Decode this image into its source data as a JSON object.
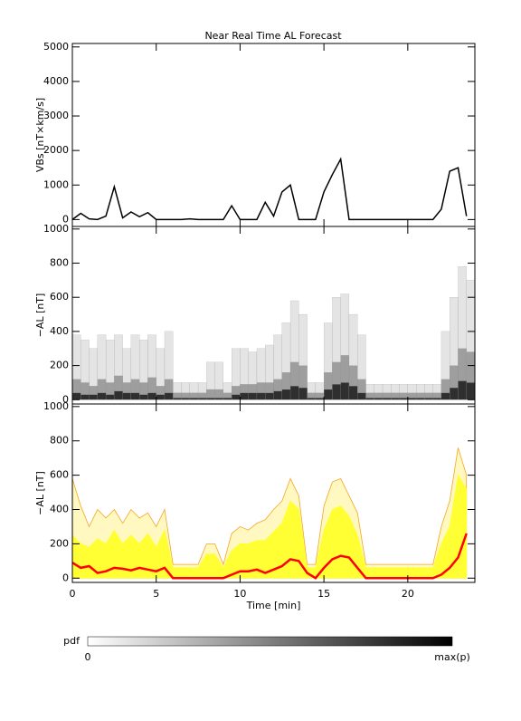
{
  "chart_data": [
    {
      "type": "line",
      "title": "Near Real Time AL Forecast",
      "ylabel": "VBs [nT×km/s]",
      "x": [
        0,
        0.5,
        1,
        1.5,
        2,
        2.5,
        3,
        3.5,
        4,
        4.5,
        5,
        5.5,
        6,
        6.5,
        7,
        7.5,
        8,
        8.5,
        9,
        9.5,
        10,
        10.5,
        11,
        11.5,
        12,
        12.5,
        13,
        13.5,
        14,
        14.5,
        15,
        15.5,
        16,
        16.5,
        17,
        17.5,
        18,
        18.5,
        19,
        19.5,
        20,
        20.5,
        21,
        21.5,
        22,
        22.5,
        23,
        23.5
      ],
      "series": [
        {
          "color": "#000000",
          "values": [
            0,
            180,
            20,
            0,
            100,
            950,
            50,
            220,
            80,
            200,
            0,
            0,
            0,
            0,
            20,
            0,
            0,
            0,
            0,
            400,
            0,
            0,
            0,
            500,
            100,
            800,
            1000,
            0,
            0,
            0,
            800,
            1300,
            1750,
            0,
            0,
            0,
            0,
            0,
            0,
            0,
            0,
            0,
            0,
            0,
            300,
            1400,
            1500,
            100
          ]
        }
      ],
      "xlim": [
        0,
        24
      ],
      "ylim": [
        -200,
        5100
      ],
      "yticks": [
        0,
        1000,
        2000,
        3000,
        4000,
        5000
      ]
    },
    {
      "type": "heatmap",
      "ylabel": "−AL [nT]",
      "x": [
        0,
        0.5,
        1,
        1.5,
        2,
        2.5,
        3,
        3.5,
        4,
        4.5,
        5,
        5.5,
        6,
        6.5,
        7,
        7.5,
        8,
        8.5,
        9,
        9.5,
        10,
        10.5,
        11,
        11.5,
        12,
        12.5,
        13,
        13.5,
        14,
        14.5,
        15,
        15.5,
        16,
        16.5,
        17,
        17.5,
        18,
        18.5,
        19,
        19.5,
        20,
        20.5,
        21,
        21.5,
        22,
        22.5,
        23,
        23.5
      ],
      "series": [
        {
          "color": "#d8d8d8",
          "values": [
            380,
            350,
            300,
            380,
            350,
            380,
            300,
            380,
            350,
            380,
            300,
            400,
            100,
            100,
            100,
            100,
            220,
            220,
            100,
            300,
            300,
            280,
            300,
            320,
            380,
            450,
            580,
            500,
            100,
            100,
            450,
            600,
            620,
            500,
            380,
            90,
            90,
            90,
            90,
            90,
            90,
            90,
            90,
            90,
            400,
            600,
            780,
            700
          ]
        },
        {
          "color": "#808080",
          "values": [
            120,
            100,
            80,
            120,
            100,
            140,
            100,
            120,
            100,
            130,
            80,
            120,
            40,
            40,
            40,
            40,
            60,
            60,
            40,
            80,
            90,
            90,
            100,
            100,
            120,
            160,
            220,
            200,
            40,
            40,
            160,
            220,
            260,
            200,
            120,
            40,
            40,
            40,
            40,
            40,
            40,
            40,
            40,
            40,
            120,
            200,
            300,
            280
          ]
        },
        {
          "color": "#000000",
          "values": [
            40,
            30,
            30,
            40,
            30,
            50,
            40,
            40,
            30,
            40,
            30,
            40,
            10,
            10,
            10,
            10,
            10,
            10,
            10,
            30,
            40,
            40,
            40,
            40,
            50,
            60,
            80,
            70,
            10,
            10,
            60,
            90,
            100,
            80,
            40,
            10,
            10,
            10,
            10,
            10,
            10,
            10,
            10,
            10,
            40,
            70,
            110,
            100
          ]
        }
      ],
      "xlim": [
        0,
        24
      ],
      "ylim": [
        -25,
        1015
      ],
      "yticks": [
        0,
        200,
        400,
        600,
        800,
        1000
      ]
    },
    {
      "type": "band",
      "ylabel": "−AL [nT]",
      "xlabel": "Time [min]",
      "x": [
        0,
        0.5,
        1,
        1.5,
        2,
        2.5,
        3,
        3.5,
        4,
        4.5,
        5,
        5.5,
        6,
        6.5,
        7,
        7.5,
        8,
        8.5,
        9,
        9.5,
        10,
        10.5,
        11,
        11.5,
        12,
        12.5,
        13,
        13.5,
        14,
        14.5,
        15,
        15.5,
        16,
        16.5,
        17,
        17.5,
        18,
        18.5,
        19,
        19.5,
        20,
        20.5,
        21,
        21.5,
        22,
        22.5,
        23,
        23.5
      ],
      "series": [
        {
          "color": "#f5a623",
          "values": [
            580,
            420,
            300,
            400,
            350,
            400,
            320,
            400,
            350,
            380,
            300,
            400,
            80,
            80,
            80,
            80,
            200,
            200,
            80,
            260,
            300,
            280,
            320,
            340,
            400,
            450,
            580,
            480,
            80,
            80,
            420,
            560,
            580,
            480,
            380,
            80,
            80,
            80,
            80,
            80,
            80,
            80,
            80,
            80,
            300,
            450,
            760,
            600
          ]
        },
        {
          "color": "#ffff33",
          "values": [
            250,
            200,
            180,
            230,
            200,
            280,
            200,
            250,
            200,
            260,
            180,
            280,
            60,
            60,
            60,
            60,
            140,
            140,
            60,
            160,
            200,
            200,
            220,
            220,
            270,
            320,
            450,
            400,
            60,
            60,
            280,
            400,
            420,
            360,
            250,
            60,
            60,
            60,
            60,
            60,
            60,
            60,
            60,
            60,
            200,
            300,
            600,
            520
          ]
        },
        {
          "color": "#ff0000",
          "values": [
            90,
            60,
            70,
            30,
            40,
            60,
            55,
            45,
            60,
            50,
            40,
            60,
            0,
            0,
            0,
            0,
            0,
            0,
            0,
            20,
            40,
            40,
            50,
            30,
            50,
            70,
            110,
            100,
            30,
            0,
            60,
            110,
            130,
            120,
            60,
            0,
            0,
            0,
            0,
            0,
            0,
            0,
            0,
            0,
            20,
            60,
            120,
            260
          ]
        }
      ],
      "xlim": [
        0,
        24
      ],
      "ylim": [
        -25,
        1015
      ],
      "yticks": [
        0,
        200,
        400,
        600,
        800,
        1000
      ],
      "xticks": [
        0,
        5,
        10,
        15,
        20
      ]
    }
  ],
  "colorbar": {
    "label": "pdf",
    "min_label": "0",
    "max_label": "max(p)"
  }
}
